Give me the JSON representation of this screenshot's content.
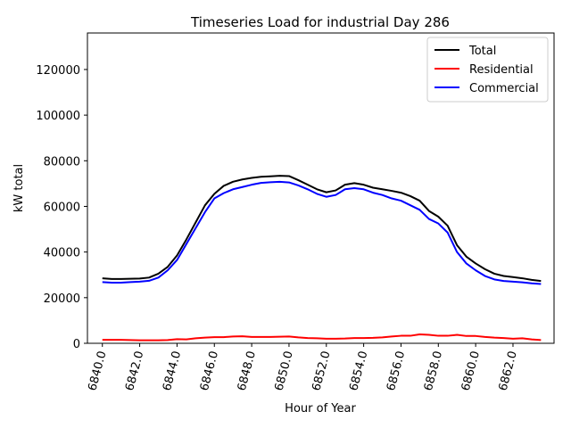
{
  "chart_data": {
    "type": "line",
    "title": "Timeseries Load for industrial   Day 286",
    "xlabel": "Hour of Year",
    "ylabel": "kW total",
    "xlim": [
      6839.2,
      6864.2
    ],
    "ylim": [
      0,
      136000
    ],
    "x_ticks": [
      6840,
      6842,
      6844,
      6846,
      6848,
      6850,
      6852,
      6854,
      6856,
      6858,
      6860,
      6862
    ],
    "x_tick_labels": [
      "6840.0",
      "6842.0",
      "6844.0",
      "6846.0",
      "6848.0",
      "6850.0",
      "6852.0",
      "6854.0",
      "6856.0",
      "6858.0",
      "6860.0",
      "6862.0"
    ],
    "y_ticks": [
      0,
      20000,
      40000,
      60000,
      80000,
      100000,
      120000
    ],
    "y_tick_labels": [
      "0",
      "20000",
      "40000",
      "60000",
      "80000",
      "100000",
      "120000"
    ],
    "legend_position": "top-right",
    "x": [
      6840.0,
      6840.5,
      6841.0,
      6841.5,
      6842.0,
      6842.5,
      6843.0,
      6843.5,
      6844.0,
      6844.5,
      6845.0,
      6845.5,
      6846.0,
      6846.5,
      6847.0,
      6847.5,
      6848.0,
      6848.5,
      6849.0,
      6849.5,
      6850.0,
      6850.5,
      6851.0,
      6851.5,
      6852.0,
      6852.5,
      6853.0,
      6853.5,
      6854.0,
      6854.5,
      6855.0,
      6855.5,
      6856.0,
      6856.5,
      6857.0,
      6857.5,
      6858.0,
      6858.5,
      6859.0,
      6859.5,
      6860.0,
      6860.5,
      6861.0,
      6861.5,
      6862.0,
      6862.5,
      6863.0,
      6863.5
    ],
    "series": [
      {
        "name": "Total",
        "color": "#000000",
        "values": [
          28500,
          28200,
          28200,
          28300,
          28400,
          28800,
          30500,
          33500,
          38500,
          45500,
          53000,
          60500,
          65500,
          69000,
          70800,
          71800,
          72500,
          73000,
          73200,
          73400,
          73300,
          71500,
          69500,
          67500,
          66200,
          67000,
          69500,
          70200,
          69500,
          68200,
          67500,
          66800,
          66000,
          64500,
          62500,
          58000,
          55500,
          51500,
          43000,
          38000,
          35000,
          32500,
          30500,
          29500,
          29000,
          28500,
          27800,
          27300
        ]
      },
      {
        "name": "Residential",
        "color": "#ff0000",
        "values": [
          1500,
          1500,
          1500,
          1400,
          1300,
          1300,
          1300,
          1400,
          1800,
          1700,
          2200,
          2500,
          2700,
          2700,
          3000,
          3100,
          2800,
          2800,
          2800,
          2900,
          3000,
          2600,
          2300,
          2200,
          2000,
          2000,
          2100,
          2300,
          2300,
          2400,
          2600,
          3000,
          3300,
          3300,
          3900,
          3700,
          3300,
          3300,
          3700,
          3200,
          3200,
          2800,
          2500,
          2300,
          2000,
          2200,
          1700,
          1400
        ]
      },
      {
        "name": "Commercial",
        "color": "#0000ff",
        "values": [
          26800,
          26600,
          26600,
          26800,
          27000,
          27400,
          28800,
          32000,
          36500,
          43500,
          50500,
          57500,
          63500,
          65800,
          67500,
          68500,
          69500,
          70300,
          70600,
          70800,
          70500,
          69200,
          67500,
          65500,
          64200,
          65000,
          67500,
          68000,
          67500,
          66000,
          65000,
          63500,
          62500,
          60500,
          58500,
          54500,
          52500,
          48500,
          40000,
          35000,
          32000,
          29500,
          28000,
          27300,
          27000,
          26700,
          26300,
          26000
        ]
      }
    ]
  }
}
